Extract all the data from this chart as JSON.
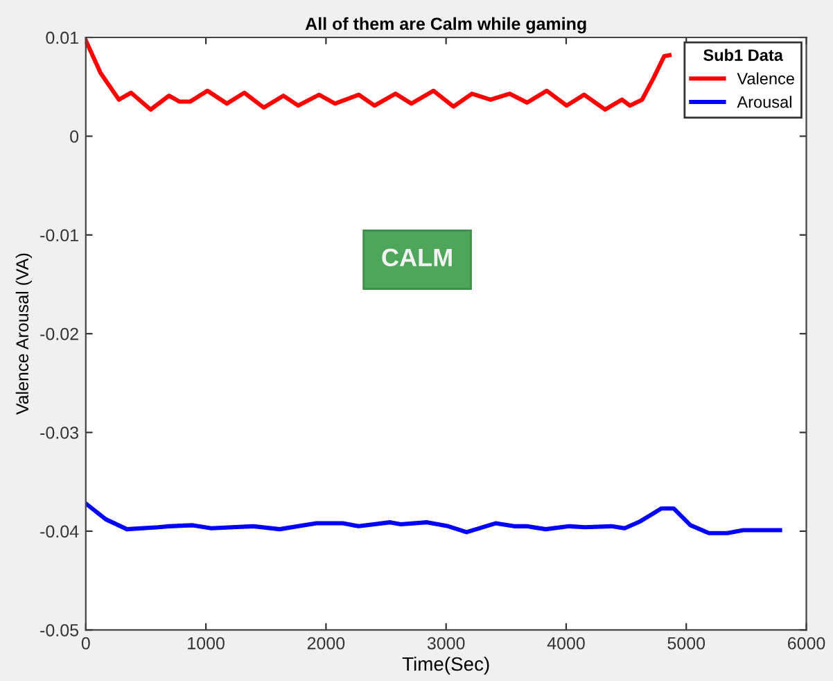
{
  "chart_data": {
    "type": "line",
    "title": "All of them are Calm while gaming",
    "xlabel": "Time(Sec)",
    "ylabel": "Valence Arousal (VA)",
    "legend_title": "Sub1 Data",
    "legend": "top right",
    "grid": false,
    "marker": "none",
    "line_style": "solid",
    "xlim": [
      0,
      6000
    ],
    "xticks": [
      0,
      1000,
      2000,
      3000,
      4000,
      5000,
      6000
    ],
    "ylim": [
      -0.05,
      0.01
    ],
    "yticks": [
      -0.05,
      -0.04,
      -0.03,
      -0.02,
      -0.01,
      0,
      0.01
    ],
    "annotations": [
      "CALM"
    ],
    "series": [
      {
        "name": "Valence",
        "color": "#ff0000",
        "x": [
          0,
          123,
          276,
          377,
          540,
          693,
          781,
          868,
          1013,
          1175,
          1320,
          1482,
          1645,
          1768,
          1943,
          2075,
          2272,
          2404,
          2579,
          2711,
          2895,
          3061,
          3215,
          3368,
          3531,
          3675,
          3838,
          4004,
          4149,
          4325,
          4465,
          4531,
          4632,
          4728,
          4816,
          4860
        ],
        "values": [
          0.0097,
          0.0064,
          0.0037,
          0.0044,
          0.0027,
          0.0041,
          0.0035,
          0.0035,
          0.0046,
          0.0033,
          0.0044,
          0.0029,
          0.0041,
          0.0031,
          0.0042,
          0.0033,
          0.0042,
          0.0031,
          0.0043,
          0.0033,
          0.0046,
          0.003,
          0.0043,
          0.0037,
          0.0043,
          0.0034,
          0.0046,
          0.0031,
          0.0042,
          0.0027,
          0.0037,
          0.0031,
          0.0037,
          0.0059,
          0.0081,
          0.0082
        ]
      },
      {
        "name": "Arousal",
        "color": "#0000ff",
        "x": [
          0,
          167,
          342,
          605,
          693,
          890,
          1044,
          1395,
          1614,
          1921,
          2140,
          2272,
          2535,
          2623,
          2842,
          3018,
          3171,
          3412,
          3566,
          3675,
          3829,
          4026,
          4158,
          4377,
          4487,
          4618,
          4794,
          4895,
          5035,
          5189,
          5342,
          5474,
          5781
        ],
        "values": [
          -0.0372,
          -0.0388,
          -0.0398,
          -0.0396,
          -0.0395,
          -0.0394,
          -0.0397,
          -0.0395,
          -0.0398,
          -0.0392,
          -0.0392,
          -0.0395,
          -0.0391,
          -0.0393,
          -0.0391,
          -0.0395,
          -0.0401,
          -0.0392,
          -0.0395,
          -0.0395,
          -0.0398,
          -0.0395,
          -0.0396,
          -0.0395,
          -0.0397,
          -0.039,
          -0.0377,
          -0.0377,
          -0.0394,
          -0.0402,
          -0.0402,
          -0.0399,
          -0.0399
        ]
      }
    ]
  }
}
